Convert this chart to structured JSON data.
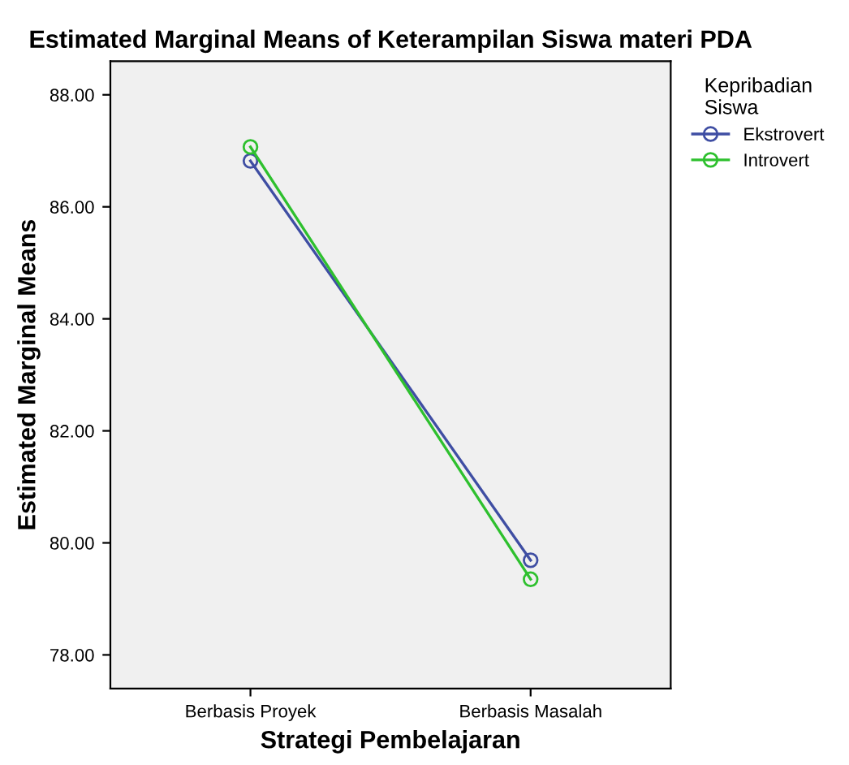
{
  "chart_data": {
    "type": "line",
    "title": "Estimated Marginal Means of Keterampilan Siswa materi PDA",
    "xlabel": "Strategi Pembelajaran",
    "ylabel": "Estimated Marginal Means",
    "legend_title": "Kepribadian\nSiswa",
    "categories": [
      "Berbasis Proyek",
      "Berbasis Masalah"
    ],
    "series": [
      {
        "name": "Ekstrovert",
        "color": "#3f4ea3",
        "values": [
          86.82,
          79.69
        ]
      },
      {
        "name": "Introvert",
        "color": "#2ec02e",
        "values": [
          87.07,
          79.35
        ]
      }
    ],
    "ylim": [
      77.4,
      88.6
    ],
    "yticks": [
      {
        "value": 78,
        "label": "78.00"
      },
      {
        "value": 80,
        "label": "80.00"
      },
      {
        "value": 82,
        "label": "82.00"
      },
      {
        "value": 84,
        "label": "84.00"
      },
      {
        "value": 86,
        "label": "86.00"
      },
      {
        "value": 88,
        "label": "88.00"
      }
    ],
    "grid": false,
    "legend": "right",
    "marker": "circle",
    "line_style": "solid"
  }
}
